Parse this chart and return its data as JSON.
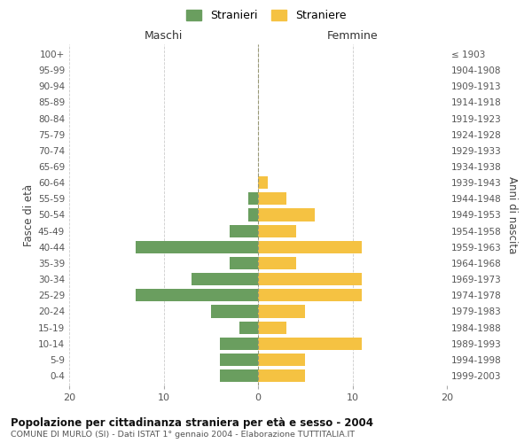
{
  "age_groups": [
    "0-4",
    "5-9",
    "10-14",
    "15-19",
    "20-24",
    "25-29",
    "30-34",
    "35-39",
    "40-44",
    "45-49",
    "50-54",
    "55-59",
    "60-64",
    "65-69",
    "70-74",
    "75-79",
    "80-84",
    "85-89",
    "90-94",
    "95-99",
    "100+"
  ],
  "birth_years": [
    "1999-2003",
    "1994-1998",
    "1989-1993",
    "1984-1988",
    "1979-1983",
    "1974-1978",
    "1969-1973",
    "1964-1968",
    "1959-1963",
    "1954-1958",
    "1949-1953",
    "1944-1948",
    "1939-1943",
    "1934-1938",
    "1929-1933",
    "1924-1928",
    "1919-1923",
    "1914-1918",
    "1909-1913",
    "1904-1908",
    "≤ 1903"
  ],
  "maschi": [
    4,
    4,
    4,
    2,
    5,
    13,
    7,
    3,
    13,
    3,
    1,
    1,
    0,
    0,
    0,
    0,
    0,
    0,
    0,
    0,
    0
  ],
  "femmine": [
    5,
    5,
    11,
    3,
    5,
    11,
    11,
    4,
    11,
    4,
    6,
    3,
    1,
    0,
    0,
    0,
    0,
    0,
    0,
    0,
    0
  ],
  "maschi_color": "#6a9e5f",
  "femmine_color": "#f5c242",
  "title": "Popolazione per cittadinanza straniera per età e sesso - 2004",
  "subtitle": "COMUNE DI MURLO (SI) - Dati ISTAT 1° gennaio 2004 - Elaborazione TUTTITALIA.IT",
  "xlabel_left": "Maschi",
  "xlabel_right": "Femmine",
  "ylabel_left": "Fasce di età",
  "ylabel_right": "Anni di nascita",
  "legend_stranieri": "Stranieri",
  "legend_straniere": "Straniere",
  "xlim": 20,
  "background_color": "#ffffff",
  "grid_color": "#cccccc"
}
